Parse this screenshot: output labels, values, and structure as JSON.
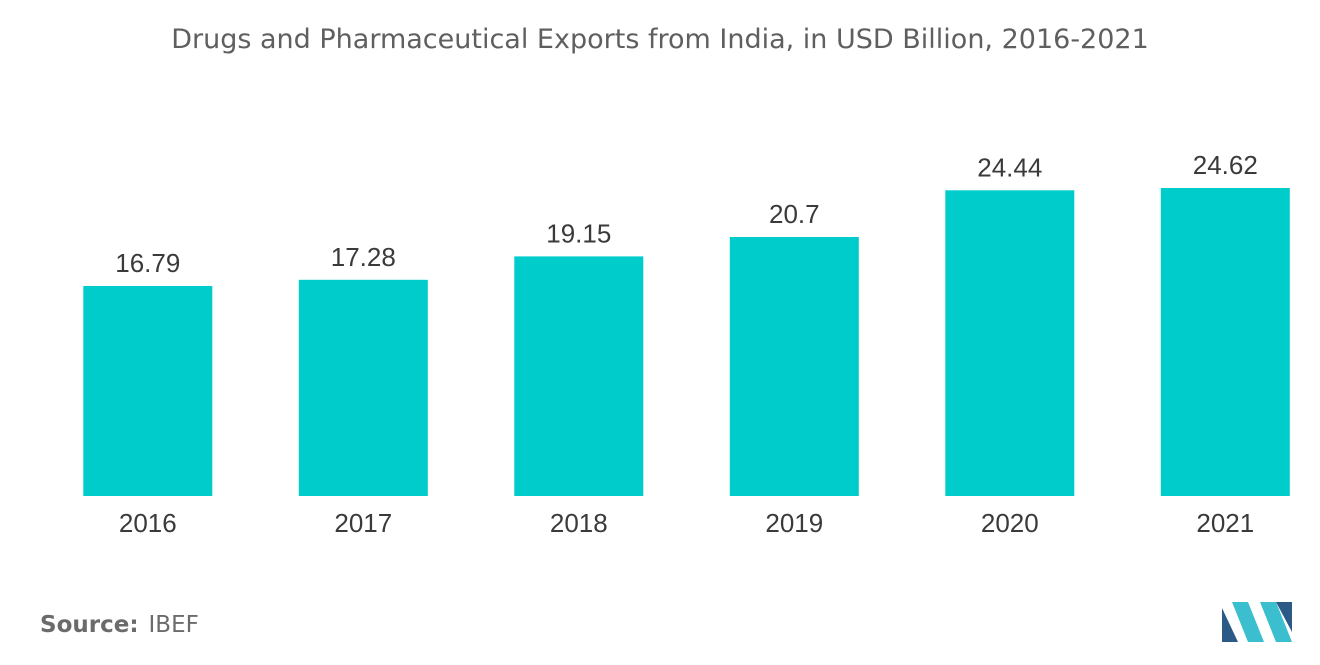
{
  "colors": {
    "bar": "#00cccc",
    "logo_dark": "#2b5a87",
    "logo_light": "#3bbfcf"
  },
  "chart_data": {
    "type": "bar",
    "title": "Drugs and Pharmaceutical Exports from India, in USD Billion, 2016-2021",
    "categories": [
      "2016",
      "2017",
      "2018",
      "2019",
      "2020",
      "2021"
    ],
    "values": [
      16.79,
      17.28,
      19.15,
      20.7,
      24.44,
      24.62
    ],
    "value_labels": [
      "16.79",
      "17.28",
      "19.15",
      "20.7",
      "24.44",
      "24.62"
    ],
    "xlabel": "",
    "ylabel": "",
    "ylim": [
      0,
      24.62
    ],
    "grid": false,
    "legend": "none"
  },
  "source": {
    "label": "Source:",
    "value": "IBEF"
  },
  "logo": {
    "icon": "mordor-intelligence-logo-icon"
  }
}
